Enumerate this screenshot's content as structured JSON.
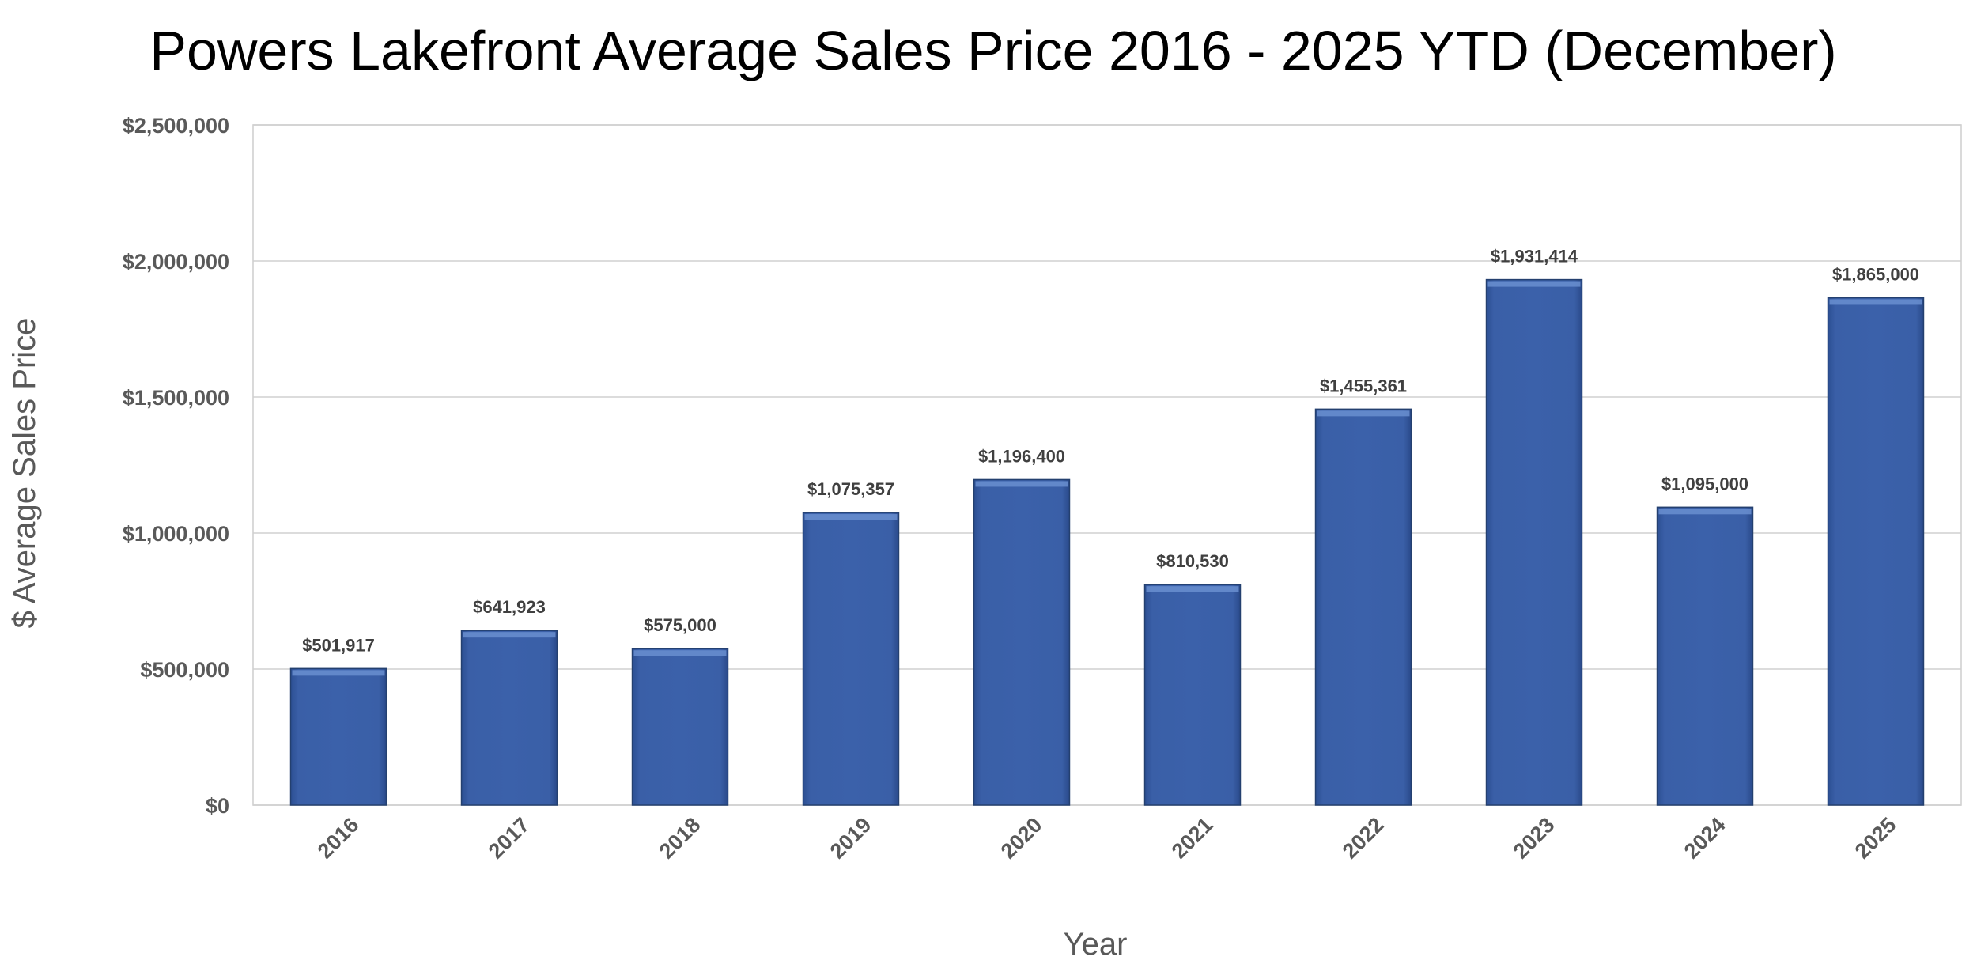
{
  "chart_data": {
    "type": "bar",
    "title": "Powers Lakefront Average Sales Price 2016 - 2025 YTD (December)",
    "xlabel": "Year",
    "ylabel": "$ Average Sales Price",
    "categories": [
      "2016",
      "2017",
      "2018",
      "2019",
      "2020",
      "2021",
      "2022",
      "2023",
      "2024",
      "2025"
    ],
    "values": [
      501917,
      641923,
      575000,
      1075357,
      1196400,
      810530,
      1455361,
      1931414,
      1095000,
      1865000
    ],
    "data_labels": [
      "$501,917",
      "$641,923",
      "$575,000",
      "$1,075,357",
      "$1,196,400",
      "$810,530",
      "$1,455,361",
      "$1,931,414",
      "$1,095,000",
      "$1,865,000"
    ],
    "yticks": [
      0,
      500000,
      1000000,
      1500000,
      2000000,
      2500000
    ],
    "ytick_labels": [
      "$0",
      "$500,000",
      "$1,000,000",
      "$1,500,000",
      "$2,000,000",
      "$2,500,000"
    ],
    "ylim": [
      0,
      2500000
    ],
    "grid": true,
    "legend": "none",
    "colors": {
      "bar": "#3a5fa7",
      "bar_edge": "#24406f",
      "bar_highlight": "#6a8fd0"
    }
  }
}
